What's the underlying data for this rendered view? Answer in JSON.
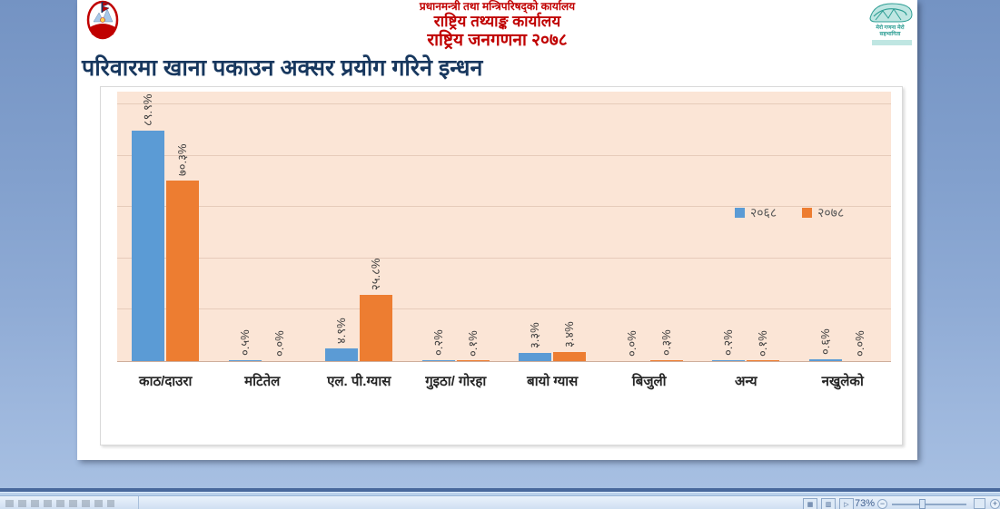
{
  "slide": {
    "header": {
      "line1": "प्रधानमन्त्री तथा मन्त्रिपरिषद्को कार्यालय",
      "line2": "राष्ट्रिय तथ्याङ्क कार्यालय",
      "line3": "राष्ट्रिय जनगणना २०७८",
      "logo_caption": "मेरो गणना मेरो सहभागिता"
    },
    "title": "परिवारमा खाना पकाउन अक्सर प्रयोग गरिने इन्धन",
    "chart_data": {
      "type": "bar",
      "title": "परिवारमा खाना पकाउन अक्सर प्रयोग गरिने इन्धन",
      "categories": [
        "काठ/दाउरा",
        "मटितेल",
        "एल. पी.ग्यास",
        "गुइठा/ गोरहा",
        "बायो ग्यास",
        "बिजुली",
        "अन्य",
        "नखुलेको"
      ],
      "series": [
        {
          "name": "२०६८",
          "color": "#5b9bd5",
          "values": [
            89.9,
            0.5,
            4.9,
            0.2,
            3.3,
            0.0,
            0.2,
            0.6
          ],
          "labels": [
            "८९.९%",
            "०.५%",
            "४.९%",
            "०.२%",
            "३.३%",
            "०.०%",
            "०.२%",
            "०.६%"
          ]
        },
        {
          "name": "२०७८",
          "color": "#ed7d31",
          "values": [
            70.3,
            0.0,
            25.8,
            0.1,
            3.4,
            0.3,
            0.1,
            0.0
          ],
          "labels": [
            "७०.३%",
            "०.०%",
            "२५.८%",
            "०.१%",
            "३.४%",
            "०.३%",
            "०.१%",
            "०.०%"
          ]
        }
      ],
      "xlabel": "",
      "ylabel": "",
      "ylim": [
        0,
        105
      ],
      "gridline_step": 20,
      "grid": true,
      "y_axis_labels_visible": false,
      "data_labels": "rotated 90° counter-clockwise above bars",
      "legend_position": "middle-right inside plot",
      "plot_bg": "#fbe5d6",
      "accent_blue": "#5b9bd5",
      "accent_orange": "#ed7d31"
    }
  },
  "status_bar": {
    "zoom_level": "73%",
    "zoom_out_glyph": "−",
    "zoom_in_glyph": "+"
  }
}
